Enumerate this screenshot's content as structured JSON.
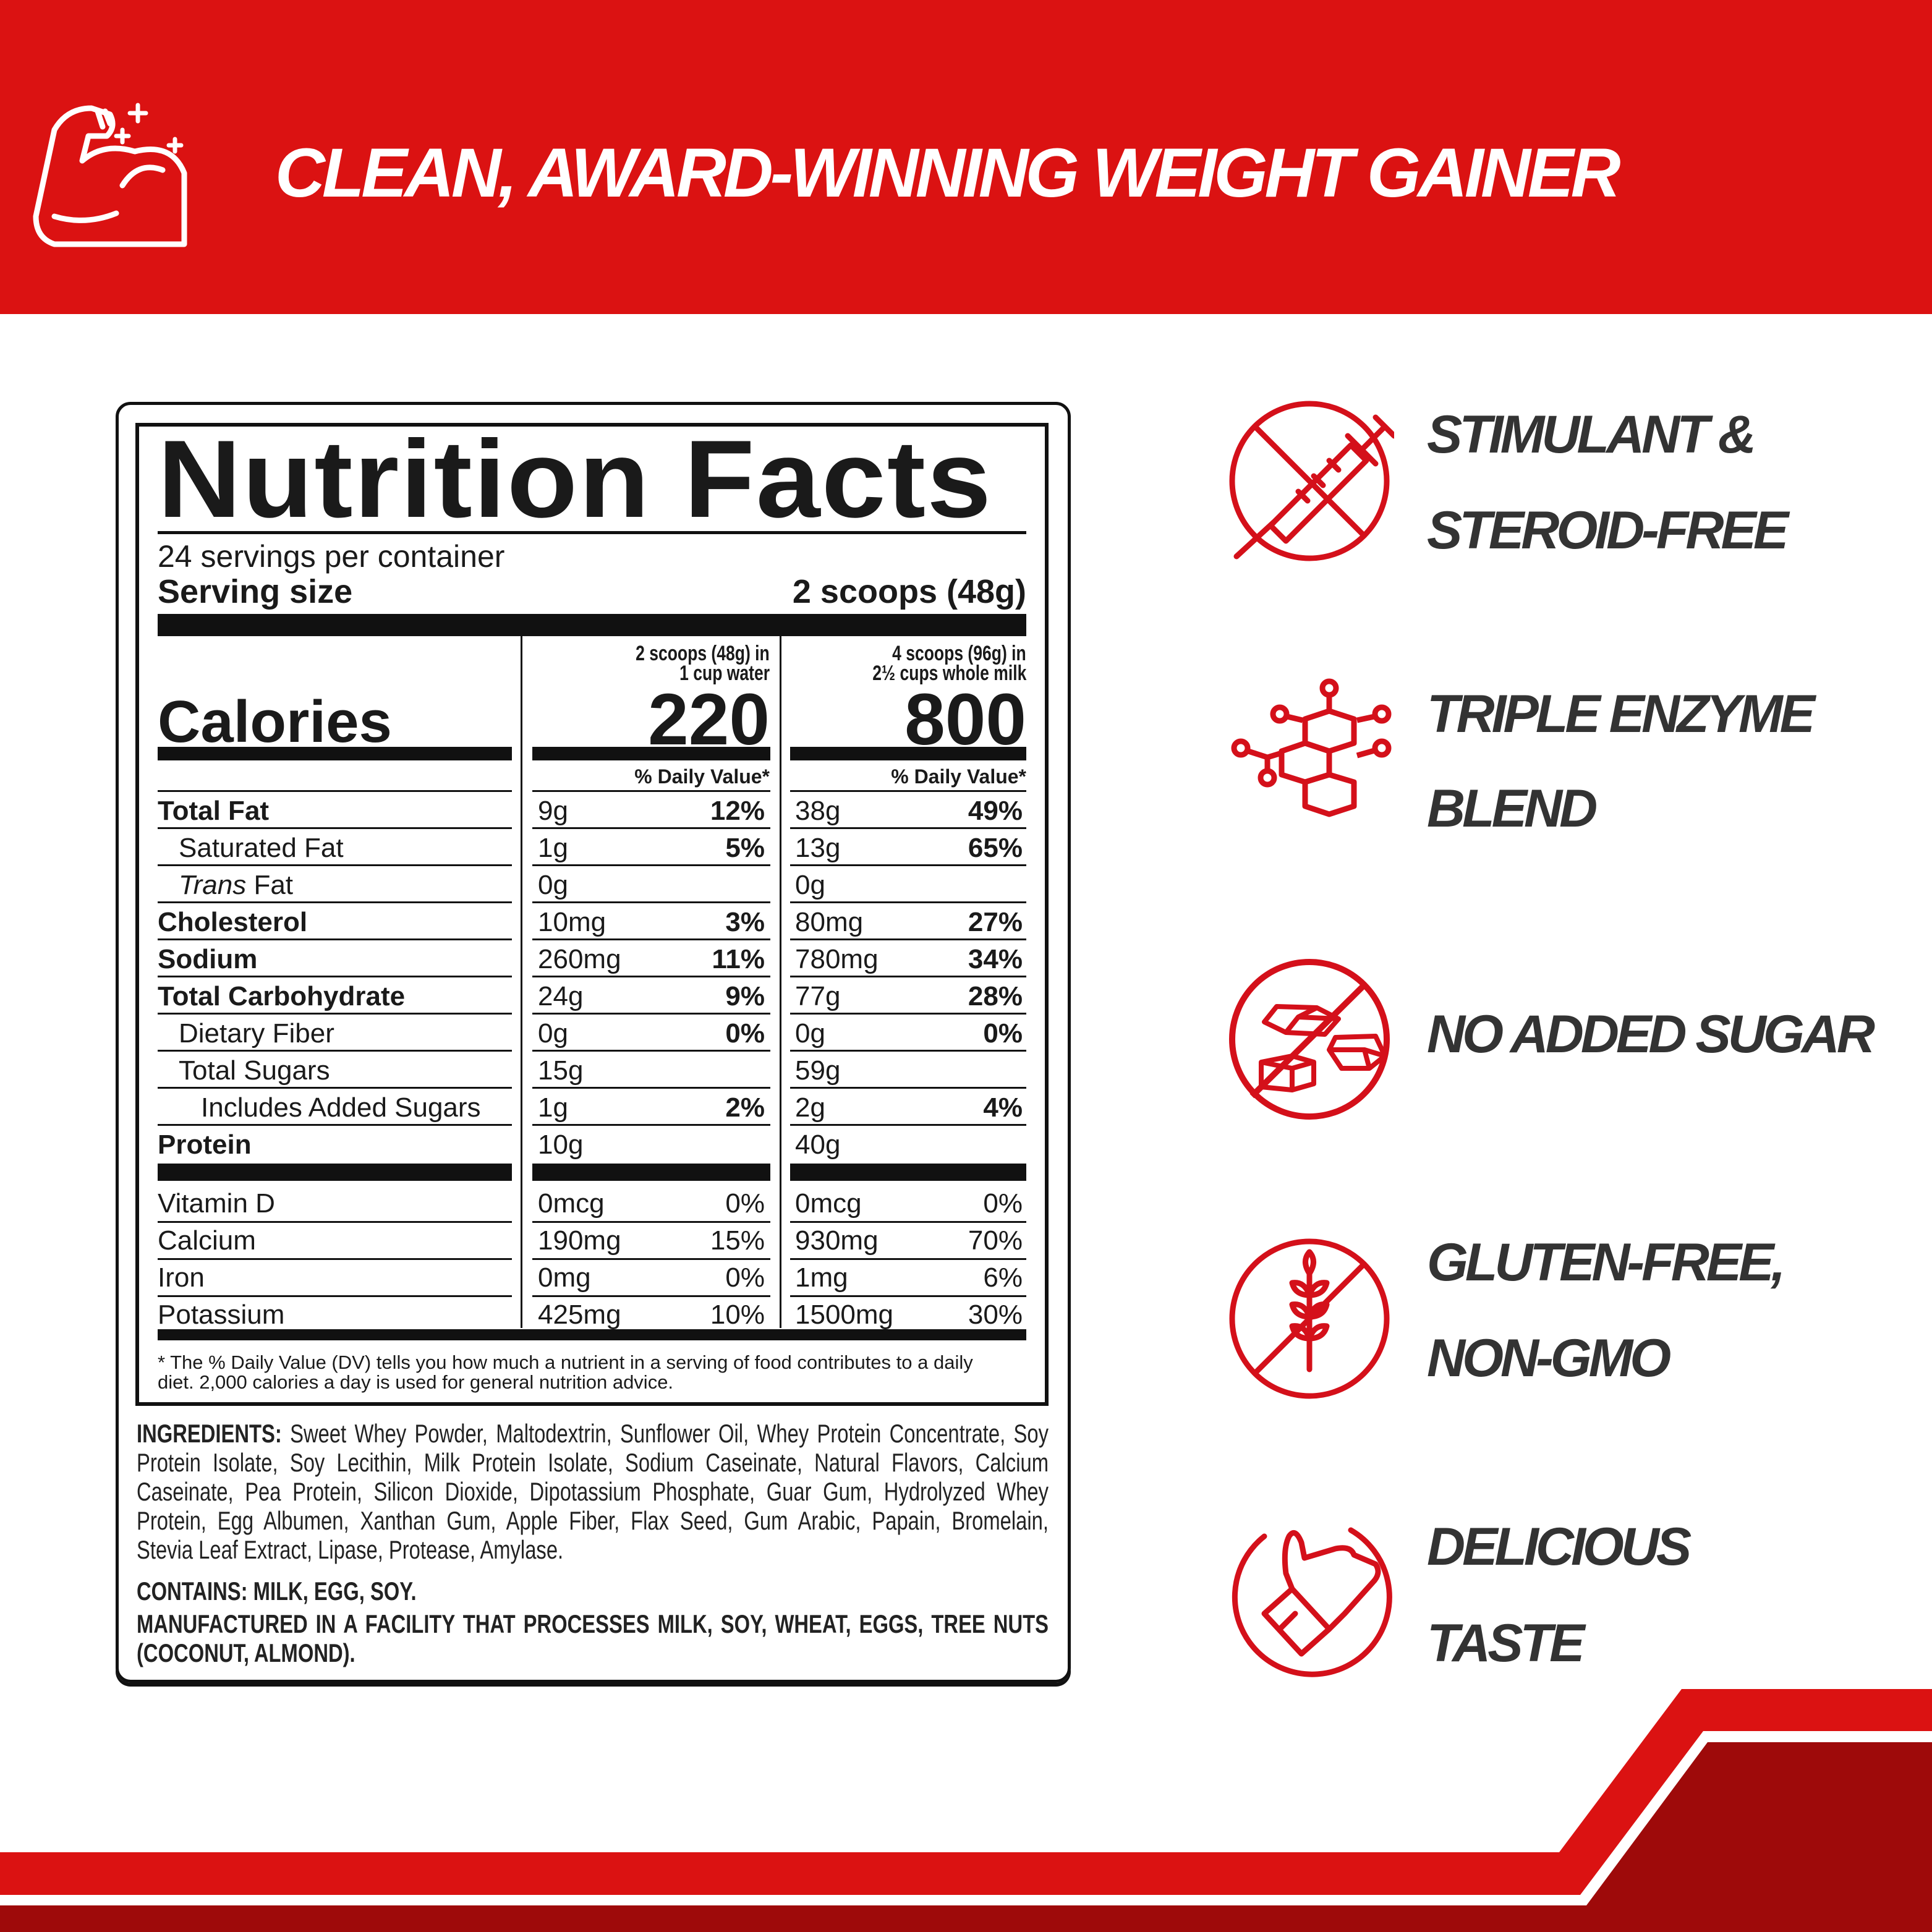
{
  "header": {
    "title": "CLEAN, AWARD-WINNING WEIGHT GAINER",
    "icon": "flexed-bicep-icon"
  },
  "colors": {
    "brand_red": "#DB1212",
    "dark_red": "#9E0A0A",
    "feature_text": "#333333"
  },
  "label": {
    "title": "Nutrition Facts",
    "servings": "24 servings per container",
    "serving_size_label": "Serving size",
    "serving_size_value": "2 scoops (48g)",
    "columns": [
      {
        "header_line1": "2 scoops (48g) in",
        "header_line2": "1 cup water",
        "calories": "220",
        "dv_label": "% Daily Value*"
      },
      {
        "header_line1": "4 scoops (96g) in",
        "header_line2": "2½ cups whole milk",
        "calories": "800",
        "dv_label": "% Daily Value*"
      }
    ],
    "calories_label": "Calories",
    "nutrients": [
      {
        "italic": "",
        "name": "Total Fat",
        "style": "bold",
        "c1": "9g",
        "p1": "12%",
        "c2": "38g",
        "p2": "49%"
      },
      {
        "italic": "",
        "name": "Saturated Fat",
        "style": "indent",
        "c1": "1g",
        "p1": "5%",
        "c2": "13g",
        "p2": "65%"
      },
      {
        "italic": "Trans",
        "name": " Fat",
        "style": "indent",
        "c1": "0g",
        "p1": "",
        "c2": "0g",
        "p2": ""
      },
      {
        "italic": "",
        "name": "Cholesterol",
        "style": "bold",
        "c1": "10mg",
        "p1": "3%",
        "c2": "80mg",
        "p2": "27%"
      },
      {
        "italic": "",
        "name": "Sodium",
        "style": "bold",
        "c1": "260mg",
        "p1": "11%",
        "c2": "780mg",
        "p2": "34%"
      },
      {
        "italic": "",
        "name": "Total Carbohydrate",
        "style": "bold",
        "c1": "24g",
        "p1": "9%",
        "c2": "77g",
        "p2": "28%"
      },
      {
        "italic": "",
        "name": "Dietary Fiber",
        "style": "indent",
        "c1": "0g",
        "p1": "0%",
        "c2": "0g",
        "p2": "0%"
      },
      {
        "italic": "",
        "name": "Total Sugars",
        "style": "indent",
        "c1": "15g",
        "p1": "",
        "c2": "59g",
        "p2": ""
      },
      {
        "italic": "",
        "name": "Includes Added Sugars",
        "style": "indent2",
        "c1": "1g",
        "p1": "2%",
        "c2": "2g",
        "p2": "4%"
      },
      {
        "italic": "",
        "name": "Protein",
        "style": "bold",
        "c1": "10g",
        "p1": "",
        "c2": "40g",
        "p2": ""
      }
    ],
    "vitamins": [
      {
        "name": "Vitamin D",
        "c1": "0mcg",
        "p1": "0%",
        "c2": "0mcg",
        "p2": "0%"
      },
      {
        "name": "Calcium",
        "c1": "190mg",
        "p1": "15%",
        "c2": "930mg",
        "p2": "70%"
      },
      {
        "name": "Iron",
        "c1": "0mg",
        "p1": "0%",
        "c2": "1mg",
        "p2": "6%"
      },
      {
        "name": "Potassium",
        "c1": "425mg",
        "p1": "10%",
        "c2": "1500mg",
        "p2": "30%"
      }
    ],
    "footnote_line1": "* The % Daily Value (DV) tells you how much a nutrient in a serving of food contributes to a daily",
    "footnote_line2": "diet. 2,000 calories a day is used for general nutrition advice."
  },
  "ingredients": {
    "label": "INGREDIENTS:",
    "lines": [
      "Sweet Whey Powder, Maltodextrin, Sunflower Oil, Whey Protein Concentrate, Soy",
      "Protein Isolate, Soy Lecithin, Milk Protein Isolate, Sodium Caseinate, Natural Flavors, Calcium",
      "Caseinate, Pea Protein, Silicon Dioxide, Dipotassium Phosphate, Guar Gum, Hydrolyzed Whey",
      "Protein, Egg Albumen, Xanthan Gum, Apple Fiber, Flax Seed, Gum Arabic, Papain, Bromelain,",
      "Stevia Leaf Extract, Lipase, Protease, Amylase."
    ],
    "contains": "CONTAINS: MILK, EGG, SOY.",
    "facility_line1": "MANUFACTURED IN A FACILITY THAT PROCESSES MILK, SOY, WHEAT, EGGS, TREE NUTS",
    "facility_line2": "(COCONUT, ALMOND)."
  },
  "features": [
    {
      "icon": "no-syringe-icon",
      "lines": [
        "STIMULANT &",
        "STEROID-FREE"
      ]
    },
    {
      "icon": "molecule-icon",
      "lines": [
        "TRIPLE ENZYME",
        "BLEND"
      ]
    },
    {
      "icon": "no-sugar-cubes-icon",
      "lines": [
        "NO ADDED SUGAR"
      ]
    },
    {
      "icon": "no-wheat-icon",
      "lines": [
        "GLUTEN-FREE,",
        "NON-GMO"
      ]
    },
    {
      "icon": "thumbs-up-icon",
      "lines": [
        "DELICIOUS",
        "TASTE"
      ]
    }
  ]
}
